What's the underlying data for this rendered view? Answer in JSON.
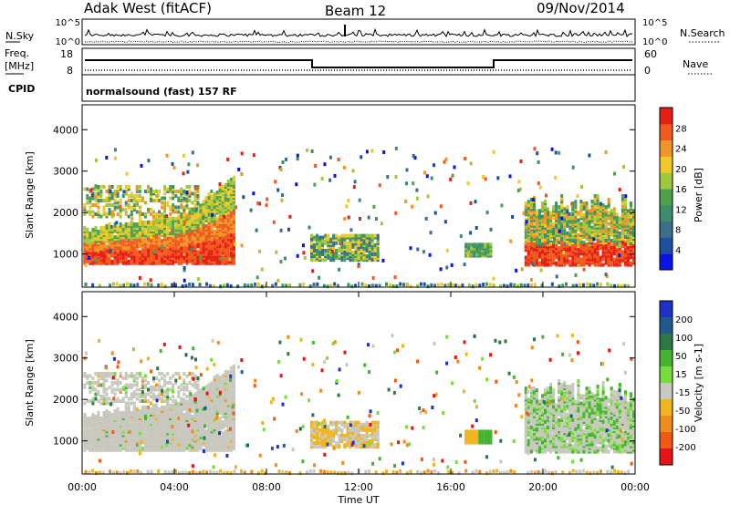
{
  "header": {
    "station": "Adak West (fitACF)",
    "beam": "Beam 12",
    "date": "09/Nov/2014"
  },
  "noise_panel": {
    "left_label": "N.Sky",
    "right_label": "N.Search",
    "left_ticks": [
      "10^5",
      "10^0"
    ],
    "right_ticks": [
      "10^5",
      "10^0"
    ]
  },
  "freq_panel": {
    "left_label_1": "Freq.",
    "left_label_2": "[MHz]",
    "left_label_3": "CPID",
    "right_label": "Nave",
    "left_ticks": [
      "18",
      "8"
    ],
    "right_ticks": [
      "60",
      "0"
    ],
    "cpid_text": "normalsound (fast) 157 RF"
  },
  "colors": {
    "power_scale": [
      "#0a14e6",
      "#1e50a0",
      "#3c6e8c",
      "#3c8c6e",
      "#50a050",
      "#a0c83c",
      "#f0c828",
      "#f09628",
      "#f05a1e",
      "#e61e14"
    ],
    "velocity_scale": [
      "#1e32c8",
      "#1e5a8c",
      "#2d7846",
      "#46b432",
      "#78dc3c",
      "#c8c8be",
      "#f0b41e",
      "#f08c1e",
      "#f05a14",
      "#e61414"
    ]
  },
  "chart_data": [
    {
      "type": "heatmap",
      "name": "power",
      "ylabel": "Slant Range [km]",
      "colorbar_label": "Power [dB]",
      "colorbar_ticks": [
        "4",
        "8",
        "12",
        "16",
        "20",
        "24",
        "28"
      ],
      "yticks": [
        "1000",
        "2000",
        "3000",
        "4000"
      ],
      "ylim": [
        200,
        4600
      ],
      "xlim": [
        "00:00",
        "24:00"
      ]
    },
    {
      "type": "heatmap",
      "name": "velocity",
      "ylabel": "Slant Range [km]",
      "colorbar_label": "Velocity [m s-1]",
      "colorbar_ticks": [
        "200",
        "100",
        "50",
        "15",
        "-15",
        "-50",
        "-100",
        "-200"
      ],
      "yticks": [
        "1000",
        "2000",
        "3000",
        "4000"
      ],
      "ylim": [
        200,
        4600
      ],
      "xlim": [
        "00:00",
        "24:00"
      ],
      "xlabel": "Time UT",
      "xticks": [
        "00:00",
        "04:00",
        "08:00",
        "12:00",
        "16:00",
        "20:00",
        "00:00"
      ]
    }
  ]
}
